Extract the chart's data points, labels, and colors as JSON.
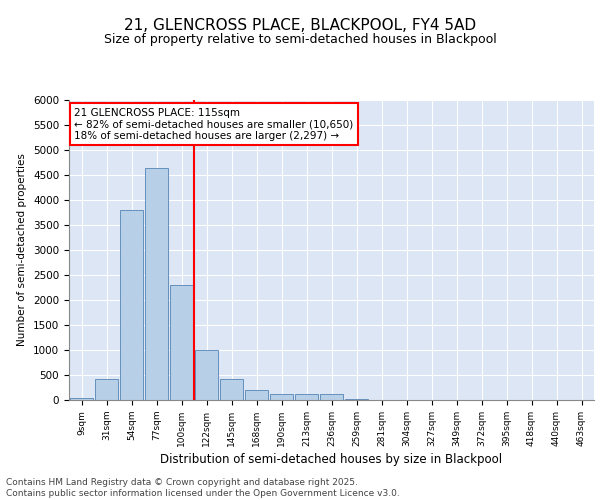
{
  "title1": "21, GLENCROSS PLACE, BLACKPOOL, FY4 5AD",
  "title2": "Size of property relative to semi-detached houses in Blackpool",
  "xlabel": "Distribution of semi-detached houses by size in Blackpool",
  "ylabel": "Number of semi-detached properties",
  "categories": [
    "9sqm",
    "31sqm",
    "54sqm",
    "77sqm",
    "100sqm",
    "122sqm",
    "145sqm",
    "168sqm",
    "190sqm",
    "213sqm",
    "236sqm",
    "259sqm",
    "281sqm",
    "304sqm",
    "327sqm",
    "349sqm",
    "372sqm",
    "395sqm",
    "418sqm",
    "440sqm",
    "463sqm"
  ],
  "values": [
    50,
    430,
    3800,
    4650,
    2300,
    1000,
    430,
    210,
    130,
    120,
    120,
    30,
    10,
    0,
    0,
    0,
    0,
    0,
    0,
    0,
    0
  ],
  "bar_color": "#b8cfe8",
  "bar_edge_color": "#5585b5",
  "annotation_text": "21 GLENCROSS PLACE: 115sqm\n← 82% of semi-detached houses are smaller (10,650)\n18% of semi-detached houses are larger (2,297) →",
  "ylim": [
    0,
    6000
  ],
  "yticks": [
    0,
    500,
    1000,
    1500,
    2000,
    2500,
    3000,
    3500,
    4000,
    4500,
    5000,
    5500,
    6000
  ],
  "footnote": "Contains HM Land Registry data © Crown copyright and database right 2025.\nContains public sector information licensed under the Open Government Licence v3.0.",
  "bg_color": "#dce6f5",
  "fig_bg": "#ffffff",
  "title1_fontsize": 11,
  "title2_fontsize": 9,
  "annotation_fontsize": 7.5,
  "footnote_fontsize": 6.5,
  "vline_pos": 4.5
}
